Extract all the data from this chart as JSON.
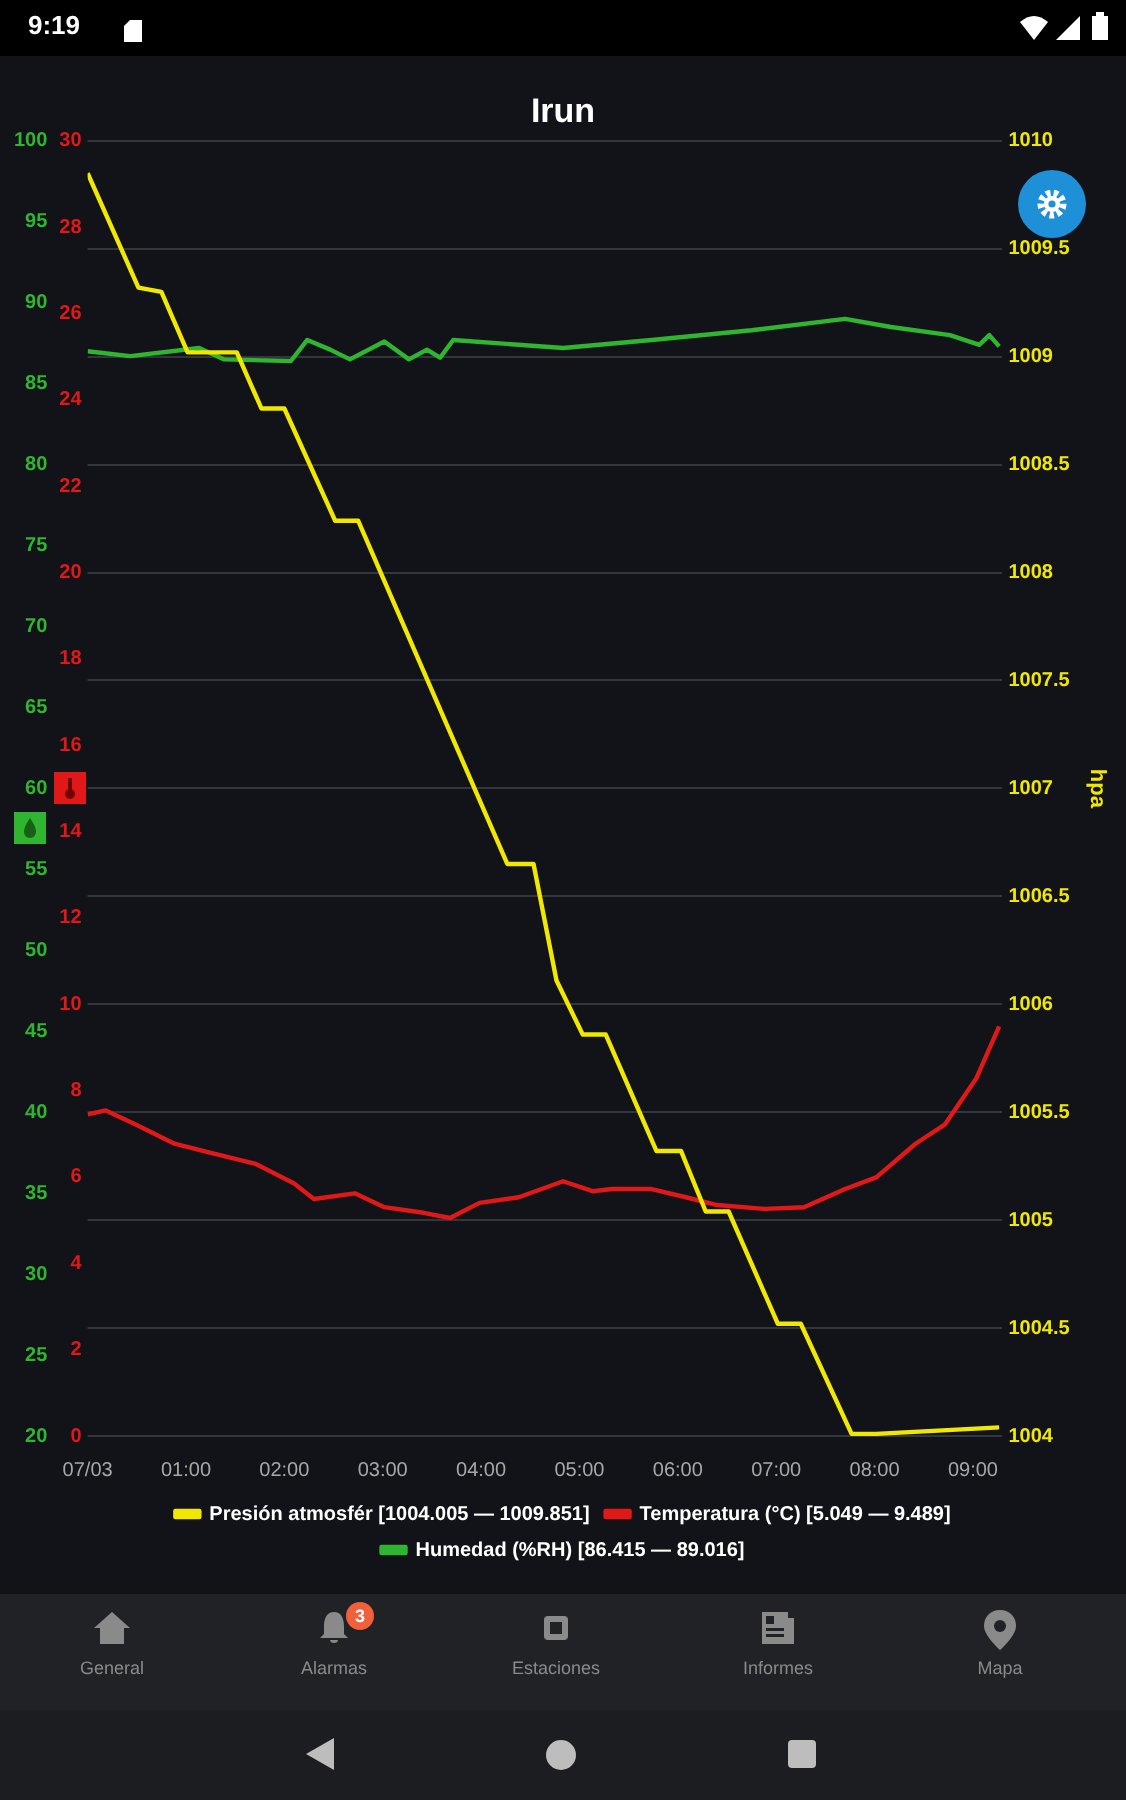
{
  "chart_data": {
    "type": "line",
    "title": "Irun",
    "ylabel": "hpa",
    "x": [
      "--03-07T00:00",
      "--03-07T00:31",
      "--03-07T00:45",
      "--03-07T01:01",
      "--03-07T01:31",
      "--03-07T01:46",
      "--03-07T02:00",
      "--03-07T02:31",
      "--03-07T02:45",
      "--03-07T04:16",
      "--03-07T04:32",
      "--03-07T04:46",
      "--03-07T05:02",
      "--03-07T05:16",
      "--03-07T05:47",
      "--03-07T06:02",
      "--03-07T06:17",
      "--03-07T06:31",
      "--03-07T07:01",
      "--03-07T07:15",
      "--03-07T07:46",
      "--03-07T08:01",
      "--03-07T09:16"
    ],
    "xlim": [
      "--03-07T00:00",
      "--03-07T09:18"
    ],
    "xticks": [
      {
        "value": "--03-07T00:00",
        "label": "07/03"
      },
      {
        "value": "--03-07T01:00",
        "label": "01:00"
      },
      {
        "value": "--03-07T02:00",
        "label": "02:00"
      },
      {
        "value": "--03-07T03:00",
        "label": "03:00"
      },
      {
        "value": "--03-07T04:00",
        "label": "04:00"
      },
      {
        "value": "--03-07T05:00",
        "label": "05:00"
      },
      {
        "value": "--03-07T06:00",
        "label": "06:00"
      },
      {
        "value": "--03-07T07:00",
        "label": "07:00"
      },
      {
        "value": "--03-07T08:00",
        "label": "08:00"
      },
      {
        "value": "--03-07T09:00",
        "label": "09:00"
      }
    ],
    "ylim": [
      1004,
      1010
    ],
    "yticks": [
      1004,
      1004.5,
      1005,
      1005.5,
      1006,
      1006.5,
      1007,
      1007.5,
      1008,
      1008.5,
      1009,
      1009.5,
      1010
    ],
    "y2lim": [
      20,
      100
    ],
    "y2ticks": [
      20,
      25,
      30,
      35,
      40,
      45,
      50,
      55,
      60,
      65,
      70,
      75,
      80,
      85,
      90,
      95,
      100
    ],
    "y3lim": [
      0,
      30
    ],
    "y3ticks": [
      0,
      2,
      4,
      6,
      8,
      10,
      12,
      14,
      16,
      18,
      20,
      22,
      24,
      26,
      28,
      30
    ],
    "grid": "y",
    "legend": "bottom",
    "series": [
      {
        "name": "Presión atmosfér [1004.005 — 1009.851]",
        "color": "#f0e800",
        "values": [
          1009.85,
          1009.32,
          1009.3,
          1009.02,
          1009.02,
          1008.76,
          1008.76,
          1008.24,
          1008.24,
          1006.65,
          1006.65,
          1006.11,
          1005.86,
          1005.86,
          1005.32,
          1005.32,
          1005.04,
          1005.04,
          1004.52,
          1004.52,
          1004.01,
          1004.01,
          1004.04
        ]
      },
      {
        "name": "Temperatura (°C) [5.049 — 9.489]",
        "color": "#e01818",
        "axis": "y3",
        "x": [
          "--03-07T00:00",
          "--03-07T00:11",
          "--03-07T00:29",
          "--03-07T00:53",
          "--03-07T01:17",
          "--03-07T01:42",
          "--03-07T02:06",
          "--03-07T02:18",
          "--03-07T02:43",
          "--03-07T03:01",
          "--03-07T03:25",
          "--03-07T03:41",
          "--03-07T03:59",
          "--03-07T04:23",
          "--03-07T04:50",
          "--03-07T05:08",
          "--03-07T05:20",
          "--03-07T05:44",
          "--03-07T06:05",
          "--03-07T06:24",
          "--03-07T06:53",
          "--03-07T07:17",
          "--03-07T07:42",
          "--03-07T08:01",
          "--03-07T08:25",
          "--03-07T08:43",
          "--03-07T09:02",
          "--03-07T09:16"
        ],
        "values": [
          7.45,
          7.54,
          7.22,
          6.77,
          6.54,
          6.31,
          5.85,
          5.49,
          5.62,
          5.3,
          5.17,
          5.05,
          5.4,
          5.53,
          5.9,
          5.67,
          5.72,
          5.72,
          5.53,
          5.35,
          5.26,
          5.3,
          5.72,
          5.99,
          6.77,
          7.22,
          8.28,
          9.49
        ]
      },
      {
        "name": "Humedad (%RH) [86.415 — 89.016]",
        "color": "#2fb52f",
        "axis": "y2",
        "x": [
          "--03-07T00:00",
          "--03-07T00:26",
          "--03-07T01:08",
          "--03-07T01:23",
          "--03-07T02:04",
          "--03-07T02:14",
          "--03-07T02:28",
          "--03-07T02:40",
          "--03-07T03:01",
          "--03-07T03:16",
          "--03-07T03:27",
          "--03-07T03:35",
          "--03-07T03:43",
          "--03-07T04:50",
          "--03-07T05:44",
          "--03-07T06:45",
          "--03-07T07:42",
          "--03-07T08:10",
          "--03-07T08:46",
          "--03-07T09:04",
          "--03-07T09:10",
          "--03-07T09:16"
        ],
        "values": [
          87.0,
          86.7,
          87.2,
          86.5,
          86.4,
          87.7,
          87.1,
          86.5,
          87.6,
          86.5,
          87.1,
          86.6,
          87.7,
          87.2,
          87.7,
          88.3,
          89.0,
          88.5,
          88.0,
          87.4,
          88.0,
          87.3
        ]
      }
    ],
    "annotations": [
      "9:19",
      "General",
      "Alarmas",
      "Estaciones",
      "Informes",
      "Mapa",
      "3"
    ]
  }
}
